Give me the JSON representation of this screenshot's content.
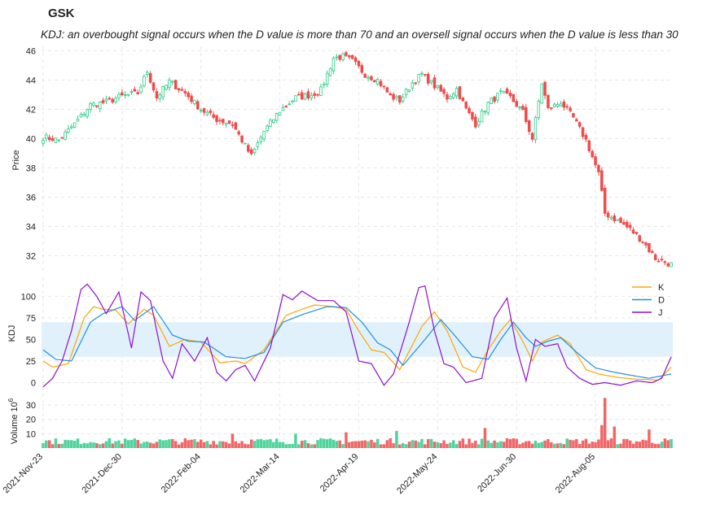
{
  "ticker": "GSK",
  "subtitle": "KDJ: an overbought signal occurs when the D value is more than 70 and an oversell signal occurs when the D value is less than 30",
  "colors": {
    "up": "#2ecc8a",
    "down": "#ef4b4b",
    "k": "#ffa500",
    "d": "#1f8fe5",
    "j": "#8b0fd4",
    "band": "#e1f1fb",
    "grid": "#e6e6e6"
  },
  "chart_data": {
    "type": "candlestick",
    "n_sessions": 200,
    "x_tick_labels": [
      "2021-Nov-23",
      "2021-Dec-30",
      "2022-Feb-04",
      "2022-Mar-14",
      "2022-Apr-19",
      "2022-May-24",
      "2022-Jun-30",
      "2022-Aug-05"
    ],
    "x_tick_index": [
      0,
      25,
      50,
      75,
      100,
      125,
      150,
      175
    ],
    "price": {
      "ylabel": "Price",
      "ylim": [
        30.8,
        46.3
      ],
      "ticks": [
        32,
        34,
        36,
        38,
        40,
        42,
        44,
        46
      ],
      "close_anchors": [
        [
          0,
          40.1
        ],
        [
          5,
          39.9
        ],
        [
          10,
          41.0
        ],
        [
          15,
          42.3
        ],
        [
          20,
          42.5
        ],
        [
          25,
          42.9
        ],
        [
          30,
          43.1
        ],
        [
          33,
          44.6
        ],
        [
          36,
          42.8
        ],
        [
          40,
          43.9
        ],
        [
          45,
          43.1
        ],
        [
          50,
          42.0
        ],
        [
          55,
          41.3
        ],
        [
          60,
          41.0
        ],
        [
          64,
          39.5
        ],
        [
          66,
          38.8
        ],
        [
          70,
          40.5
        ],
        [
          75,
          41.9
        ],
        [
          80,
          42.8
        ],
        [
          85,
          43.0
        ],
        [
          88,
          43.3
        ],
        [
          92,
          45.5
        ],
        [
          95,
          45.6
        ],
        [
          98,
          45.3
        ],
        [
          102,
          44.4
        ],
        [
          106,
          44.0
        ],
        [
          110,
          42.9
        ],
        [
          113,
          42.6
        ],
        [
          117,
          43.8
        ],
        [
          120,
          44.4
        ],
        [
          124,
          43.6
        ],
        [
          128,
          42.8
        ],
        [
          131,
          43.4
        ],
        [
          134,
          42.0
        ],
        [
          137,
          41.0
        ],
        [
          141,
          42.4
        ],
        [
          145,
          43.1
        ],
        [
          148,
          42.8
        ],
        [
          152,
          41.8
        ],
        [
          155,
          40.0
        ],
        [
          158,
          43.8
        ],
        [
          160,
          42.0
        ],
        [
          164,
          42.5
        ],
        [
          168,
          41.4
        ],
        [
          172,
          39.9
        ],
        [
          176,
          37.6
        ],
        [
          178,
          34.9
        ],
        [
          182,
          34.4
        ],
        [
          186,
          33.8
        ],
        [
          190,
          33.0
        ],
        [
          194,
          31.8
        ],
        [
          199,
          31.4
        ]
      ]
    },
    "kdj": {
      "ylabel": "KDJ",
      "ylim": [
        -8,
        122
      ],
      "ticks": [
        0,
        25,
        50,
        75,
        100
      ],
      "band": [
        30,
        70
      ],
      "legend": [
        "K",
        "D",
        "J"
      ],
      "k_anchors": [
        [
          0,
          25
        ],
        [
          3,
          18
        ],
        [
          8,
          22
        ],
        [
          13,
          75
        ],
        [
          16,
          88
        ],
        [
          19,
          85
        ],
        [
          23,
          84
        ],
        [
          27,
          68
        ],
        [
          32,
          85
        ],
        [
          35,
          78
        ],
        [
          40,
          42
        ],
        [
          45,
          50
        ],
        [
          50,
          47
        ],
        [
          56,
          23
        ],
        [
          61,
          25
        ],
        [
          64,
          22
        ],
        [
          70,
          38
        ],
        [
          77,
          78
        ],
        [
          82,
          85
        ],
        [
          86,
          90
        ],
        [
          92,
          88
        ],
        [
          96,
          85
        ],
        [
          100,
          60
        ],
        [
          104,
          38
        ],
        [
          108,
          35
        ],
        [
          113,
          15
        ],
        [
          120,
          65
        ],
        [
          124,
          82
        ],
        [
          128,
          60
        ],
        [
          133,
          18
        ],
        [
          137,
          12
        ],
        [
          141,
          38
        ],
        [
          145,
          60
        ],
        [
          148,
          73
        ],
        [
          152,
          48
        ],
        [
          155,
          25
        ],
        [
          158,
          47
        ],
        [
          163,
          55
        ],
        [
          167,
          45
        ],
        [
          172,
          15
        ],
        [
          176,
          10
        ],
        [
          182,
          6
        ],
        [
          188,
          4
        ],
        [
          195,
          3
        ],
        [
          199,
          18
        ]
      ],
      "d_anchors": [
        [
          0,
          38
        ],
        [
          4,
          27
        ],
        [
          9,
          25
        ],
        [
          15,
          70
        ],
        [
          19,
          80
        ],
        [
          25,
          88
        ],
        [
          29,
          72
        ],
        [
          35,
          88
        ],
        [
          41,
          55
        ],
        [
          46,
          48
        ],
        [
          51,
          47
        ],
        [
          58,
          30
        ],
        [
          64,
          28
        ],
        [
          70,
          35
        ],
        [
          76,
          70
        ],
        [
          83,
          80
        ],
        [
          90,
          88
        ],
        [
          96,
          87
        ],
        [
          101,
          70
        ],
        [
          106,
          46
        ],
        [
          110,
          38
        ],
        [
          114,
          20
        ],
        [
          121,
          50
        ],
        [
          126,
          73
        ],
        [
          131,
          52
        ],
        [
          136,
          30
        ],
        [
          141,
          27
        ],
        [
          145,
          50
        ],
        [
          149,
          70
        ],
        [
          153,
          52
        ],
        [
          156,
          42
        ],
        [
          160,
          48
        ],
        [
          164,
          52
        ],
        [
          170,
          32
        ],
        [
          175,
          17
        ],
        [
          181,
          12
        ],
        [
          187,
          8
        ],
        [
          192,
          5
        ],
        [
          199,
          10
        ]
      ],
      "j_anchors": [
        [
          0,
          -5
        ],
        [
          3,
          5
        ],
        [
          6,
          25
        ],
        [
          9,
          60
        ],
        [
          12,
          108
        ],
        [
          14,
          114
        ],
        [
          17,
          100
        ],
        [
          20,
          80
        ],
        [
          24,
          105
        ],
        [
          28,
          40
        ],
        [
          31,
          105
        ],
        [
          34,
          95
        ],
        [
          38,
          25
        ],
        [
          41,
          5
        ],
        [
          44,
          45
        ],
        [
          48,
          25
        ],
        [
          52,
          52
        ],
        [
          55,
          12
        ],
        [
          58,
          2
        ],
        [
          61,
          15
        ],
        [
          64,
          20
        ],
        [
          67,
          2
        ],
        [
          72,
          40
        ],
        [
          76,
          102
        ],
        [
          79,
          96
        ],
        [
          82,
          106
        ],
        [
          87,
          95
        ],
        [
          92,
          95
        ],
        [
          96,
          82
        ],
        [
          100,
          25
        ],
        [
          104,
          22
        ],
        [
          108,
          -3
        ],
        [
          111,
          10
        ],
        [
          116,
          70
        ],
        [
          119,
          110
        ],
        [
          121,
          112
        ],
        [
          124,
          60
        ],
        [
          127,
          22
        ],
        [
          130,
          18
        ],
        [
          134,
          0
        ],
        [
          139,
          5
        ],
        [
          143,
          75
        ],
        [
          147,
          98
        ],
        [
          150,
          40
        ],
        [
          153,
          2
        ],
        [
          156,
          50
        ],
        [
          159,
          42
        ],
        [
          163,
          45
        ],
        [
          166,
          18
        ],
        [
          170,
          5
        ],
        [
          174,
          -2
        ],
        [
          178,
          0
        ],
        [
          183,
          -3
        ],
        [
          188,
          2
        ],
        [
          193,
          0
        ],
        [
          196,
          5
        ],
        [
          199,
          30
        ]
      ]
    },
    "volume": {
      "ylabel": "Volume  10^6",
      "ylim": [
        0,
        38
      ],
      "ticks": [
        10,
        20,
        30
      ],
      "peaks": [
        [
          178,
          35
        ],
        [
          177,
          16
        ],
        [
          181,
          15
        ],
        [
          140,
          14
        ],
        [
          112,
          12
        ],
        [
          96,
          11
        ],
        [
          60,
          10
        ],
        [
          80,
          10
        ],
        [
          192,
          13
        ]
      ]
    }
  }
}
